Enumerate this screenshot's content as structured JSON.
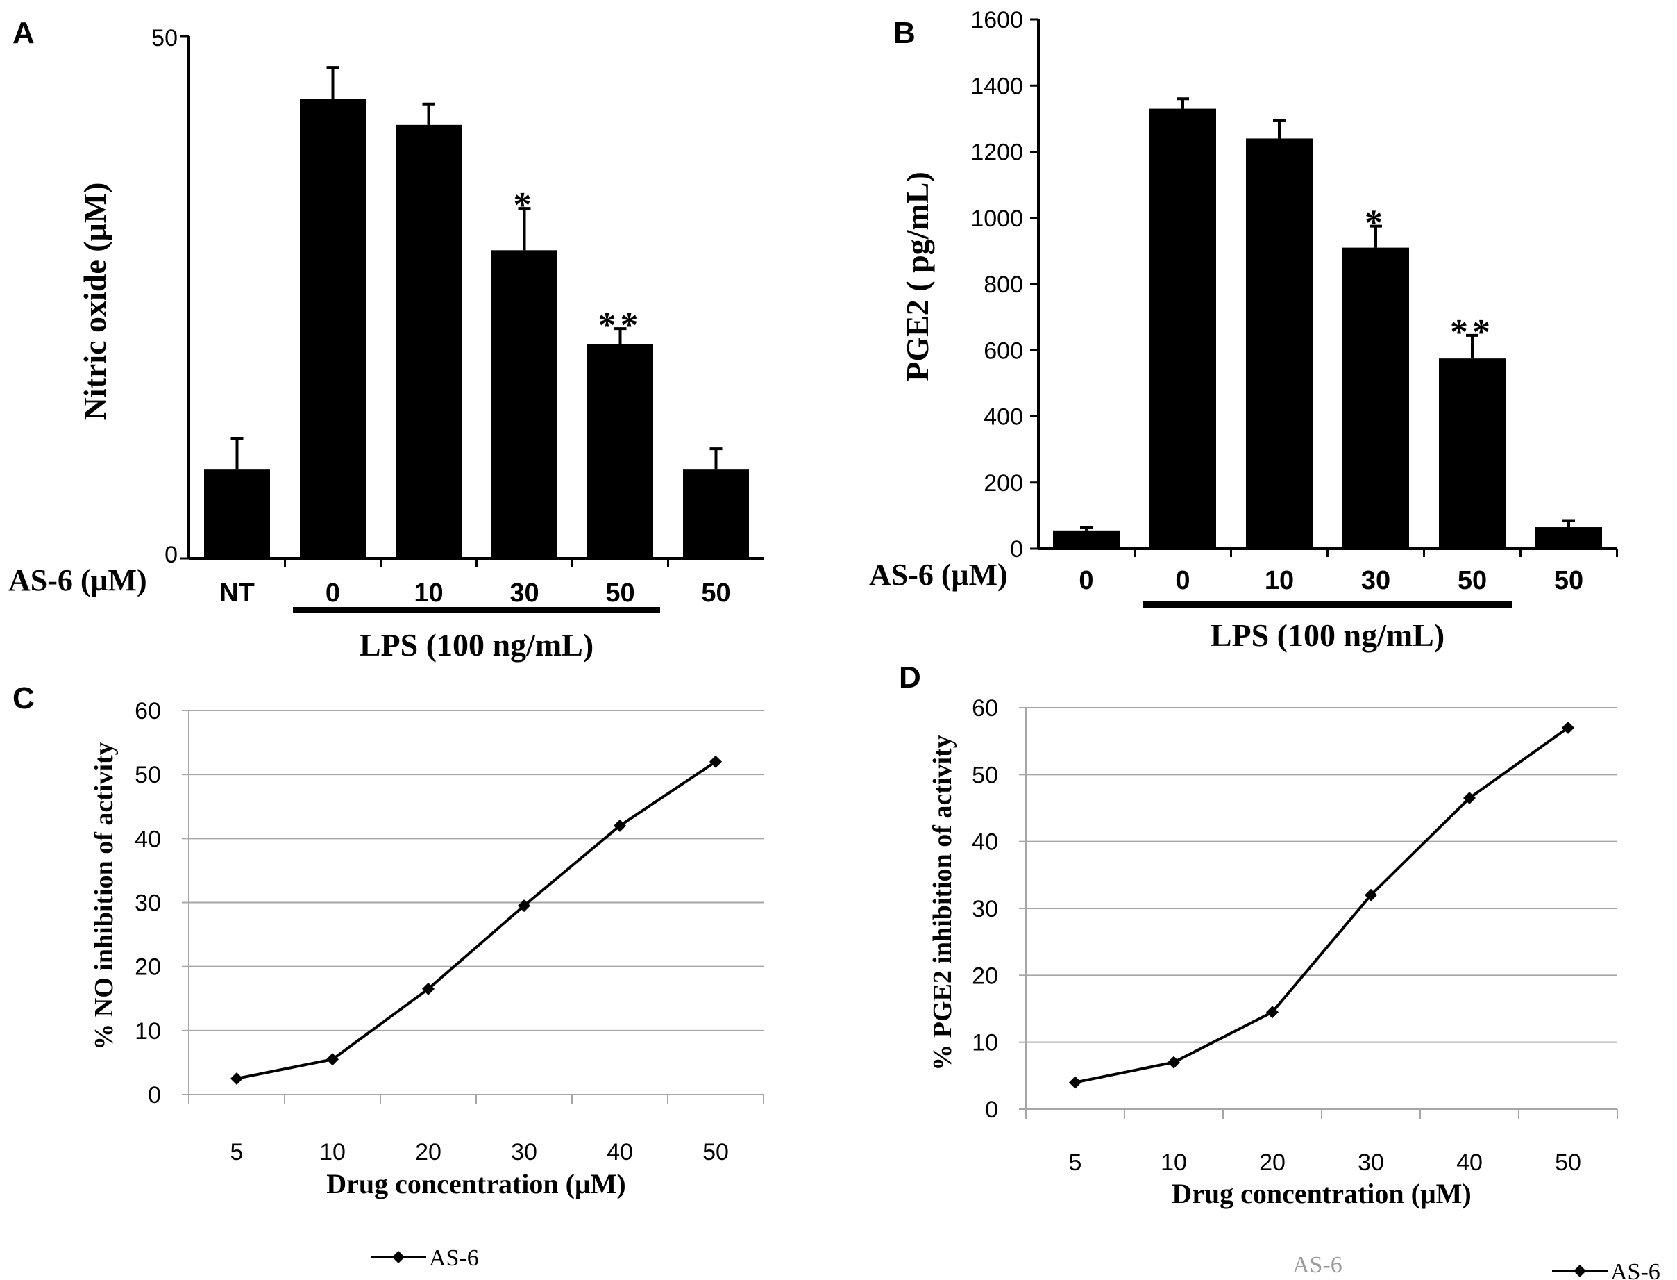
{
  "charts": [
    {
      "id": "A",
      "type": "bar",
      "panel_label": "A",
      "xlabel_prefix": "AS-6 (μM)",
      "categories": [
        "NT",
        "0",
        "10",
        "30",
        "50",
        "50"
      ],
      "values": [
        8.5,
        44,
        41.5,
        29.5,
        20.5,
        8.5
      ],
      "errors": [
        3,
        3,
        2,
        4,
        1.5,
        2
      ],
      "significance": [
        "",
        "",
        "",
        "*",
        "**",
        ""
      ],
      "ylabel": "Nitric oxide (μM)",
      "ylim": [
        0,
        50
      ],
      "yticks": [
        "0",
        "50"
      ],
      "group_label": "LPS (100 ng/mL)",
      "group_span": [
        1,
        4
      ]
    },
    {
      "id": "B",
      "type": "bar",
      "panel_label": "B",
      "xlabel_prefix": "AS-6 (μM)",
      "categories": [
        "0",
        "0",
        "10",
        "30",
        "50",
        "50"
      ],
      "values": [
        55,
        1330,
        1240,
        910,
        575,
        65
      ],
      "errors": [
        8,
        30,
        55,
        65,
        70,
        20
      ],
      "significance": [
        "",
        "",
        "",
        "*",
        "**",
        ""
      ],
      "ylabel": "PGE2 ( pg/mL)",
      "ylim": [
        0,
        1600
      ],
      "yticks": [
        "0",
        "200",
        "400",
        "600",
        "800",
        "1000",
        "1200",
        "1400",
        "1600"
      ],
      "group_label": "LPS (100 ng/mL)",
      "group_span": [
        1,
        4
      ]
    },
    {
      "id": "C",
      "type": "line",
      "panel_label": "C",
      "series_name": "AS-6",
      "categories": [
        "5",
        "10",
        "20",
        "30",
        "40",
        "50"
      ],
      "values": [
        2.5,
        5.5,
        16.5,
        29.5,
        42,
        52
      ],
      "xlabel": "Drug concentration (μM)",
      "ylabel": "%  NO inhibition of activity",
      "ylim": [
        0,
        60
      ],
      "yticks": [
        "0",
        "10",
        "20",
        "30",
        "40",
        "50",
        "60"
      ],
      "legend_label": "AS-6"
    },
    {
      "id": "D",
      "type": "line",
      "panel_label": "D",
      "series_name": "AS-6",
      "categories": [
        "5",
        "10",
        "20",
        "30",
        "40",
        "50"
      ],
      "values": [
        4,
        7,
        14.5,
        32,
        46.5,
        57
      ],
      "xlabel": "Drug concentration (μM)",
      "ylabel": "% PGE2 inhibition of activity",
      "ylim": [
        0,
        60
      ],
      "yticks": [
        "0",
        "10",
        "20",
        "30",
        "40",
        "50",
        "60"
      ],
      "legend_label": "AS-6",
      "faded_label": "AS-6"
    }
  ],
  "colors": {
    "ink": "#000000",
    "grid": "#a6a6a6",
    "faded": "#9a9a9a"
  }
}
